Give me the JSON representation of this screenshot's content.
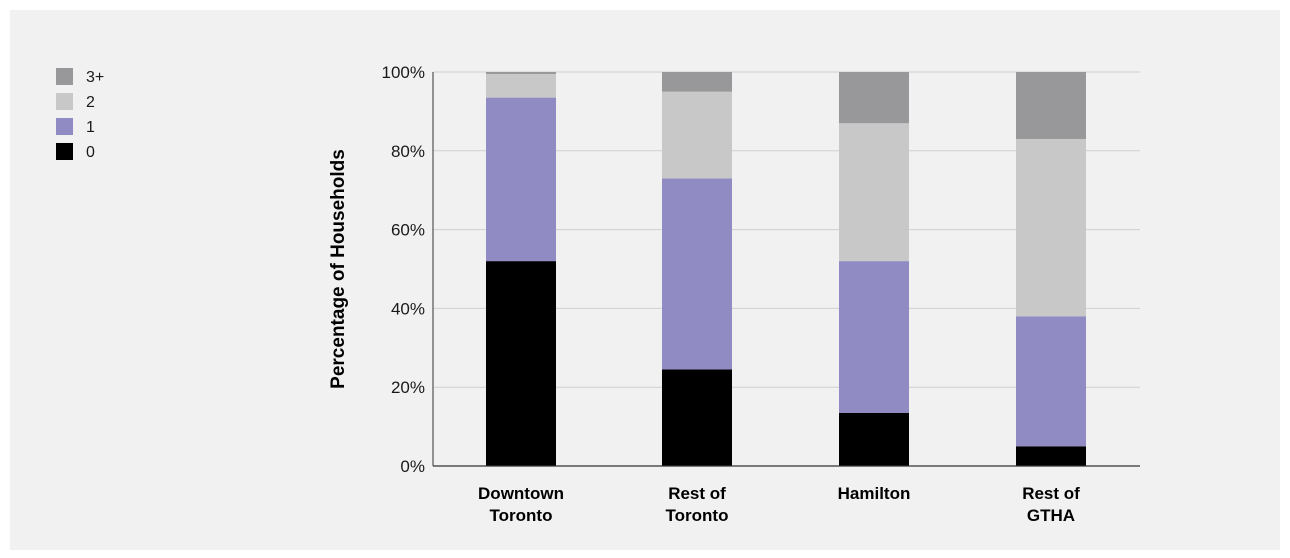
{
  "chart_data": {
    "type": "bar",
    "stacked": true,
    "categories": [
      [
        "Downtown",
        "Toronto"
      ],
      [
        "Rest of",
        "Toronto"
      ],
      [
        "Hamilton"
      ],
      [
        "Rest of",
        "GTHA"
      ]
    ],
    "series": [
      {
        "name": "0",
        "color": "#000000",
        "values": [
          52,
          24.5,
          13.5,
          5
        ]
      },
      {
        "name": "1",
        "color": "#918bc3",
        "values": [
          41.5,
          48.5,
          38.5,
          33
        ]
      },
      {
        "name": "2",
        "color": "#c8c8c9",
        "values": [
          6,
          22,
          35,
          45
        ]
      },
      {
        "name": "3+",
        "color": "#98989a",
        "values": [
          0.5,
          5,
          13,
          17
        ]
      }
    ],
    "legend_order": [
      "3+",
      "2",
      "1",
      "0"
    ],
    "legend_placement": "top-left",
    "ylabel": "Percentage of Households",
    "xlabel": "",
    "ylim": [
      0,
      100
    ],
    "yticks": [
      0,
      20,
      40,
      60,
      80,
      100
    ],
    "ytick_labels": [
      "0%",
      "20%",
      "40%",
      "60%",
      "80%",
      "100%"
    ],
    "grid": true,
    "background": "#f1f1f1"
  }
}
